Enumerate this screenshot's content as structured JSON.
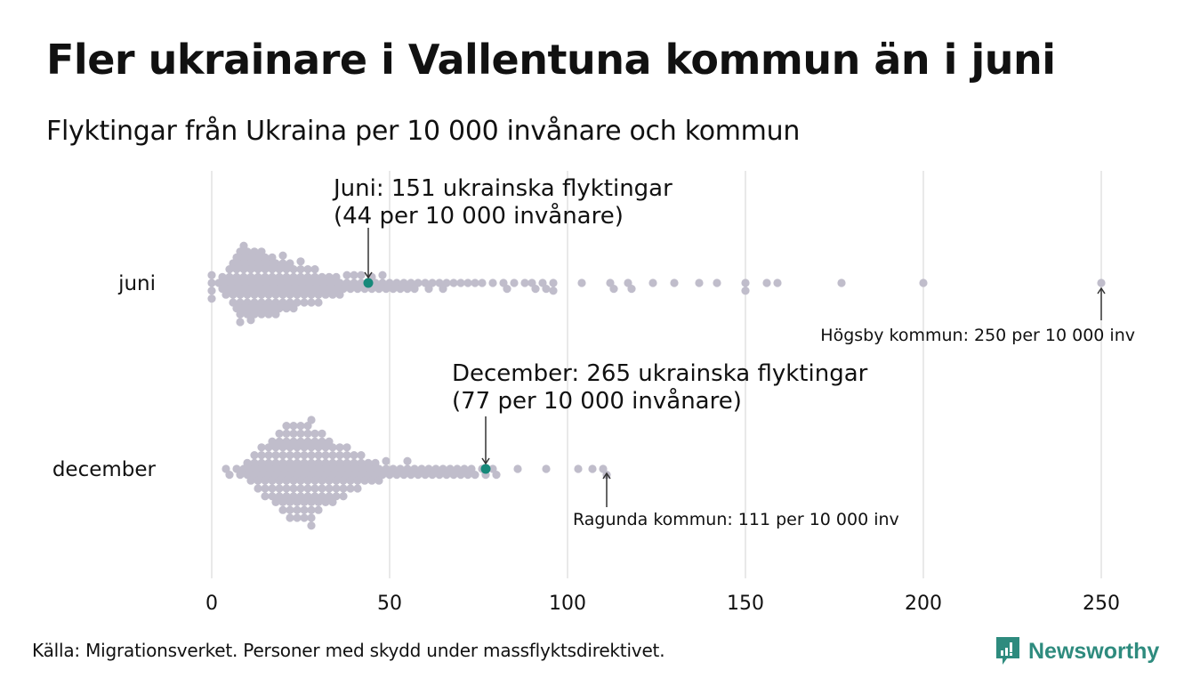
{
  "header": {
    "title": "Fler ukrainare i Vallentuna kommun än i juni",
    "subtitle": "Flyktingar från Ukraina per 10 000 invånare och kommun"
  },
  "footer": {
    "source": "Källa: Migrationsverket. Personer med skydd under massflyktsdirektivet.",
    "logo_text": "Newsworthy"
  },
  "colors": {
    "dot": "#c0bdcb",
    "highlight": "#17897a",
    "grid": "#d3d3d3",
    "brand": "#2e8b7e"
  },
  "chart_data": {
    "type": "scatter",
    "subtype": "beeswarm",
    "title": "Fler ukrainare i Vallentuna kommun än i juni",
    "subtitle": "Flyktingar från Ukraina per 10 000 invånare och kommun",
    "xlabel": "",
    "ylabel": "",
    "xlim": [
      0,
      250
    ],
    "xticks": [
      0,
      50,
      100,
      150,
      200,
      250
    ],
    "grid": true,
    "categories": [
      "juni",
      "december"
    ],
    "series": [
      {
        "name": "juni",
        "highlight": {
          "value": 44,
          "label_line1": "Juni: 151 ukrainska flyktingar",
          "label_line2": "(44 per 10 000 invånare)"
        },
        "max_annotation": {
          "value": 250,
          "label": "Högsby kommun: 250 per 10 000 inv"
        },
        "values": [
          0,
          0,
          0,
          0,
          2,
          3,
          3,
          4,
          4,
          5,
          5,
          5,
          6,
          6,
          6,
          6,
          7,
          7,
          7,
          7,
          7,
          8,
          8,
          8,
          8,
          8,
          8,
          8,
          9,
          9,
          9,
          9,
          9,
          9,
          10,
          10,
          10,
          10,
          10,
          10,
          11,
          11,
          11,
          11,
          11,
          11,
          12,
          12,
          12,
          12,
          12,
          12,
          13,
          13,
          13,
          13,
          13,
          14,
          14,
          14,
          14,
          14,
          14,
          15,
          15,
          15,
          15,
          15,
          16,
          16,
          16,
          16,
          16,
          17,
          17,
          17,
          17,
          17,
          18,
          18,
          18,
          18,
          18,
          19,
          19,
          19,
          19,
          20,
          20,
          20,
          20,
          20,
          21,
          21,
          21,
          21,
          22,
          22,
          22,
          22,
          23,
          23,
          23,
          23,
          24,
          24,
          24,
          25,
          25,
          25,
          25,
          26,
          26,
          26,
          27,
          27,
          27,
          28,
          28,
          28,
          29,
          29,
          29,
          30,
          30,
          30,
          31,
          31,
          32,
          32,
          33,
          33,
          34,
          34,
          35,
          35,
          36,
          36,
          37,
          38,
          38,
          39,
          40,
          40,
          41,
          42,
          42,
          43,
          44,
          45,
          45,
          46,
          47,
          48,
          48,
          49,
          50,
          51,
          52,
          53,
          54,
          55,
          56,
          57,
          58,
          60,
          61,
          62,
          64,
          65,
          66,
          68,
          70,
          72,
          74,
          76,
          79,
          82,
          83,
          85,
          88,
          90,
          91,
          93,
          94,
          96,
          96,
          104,
          112,
          113,
          117,
          118,
          124,
          130,
          137,
          142,
          150,
          150,
          156,
          159,
          177,
          200,
          250
        ]
      },
      {
        "name": "december",
        "highlight": {
          "value": 77,
          "label_line1": "December: 265 ukrainska flyktingar",
          "label_line2": "(77 per 10 000 invånare)"
        },
        "max_annotation": {
          "value": 111,
          "label": "Ragunda kommun: 111 per 10 000 inv"
        },
        "values": [
          4,
          5,
          7,
          8,
          9,
          10,
          10,
          11,
          11,
          12,
          12,
          12,
          13,
          13,
          13,
          14,
          14,
          14,
          14,
          15,
          15,
          15,
          15,
          16,
          16,
          16,
          16,
          17,
          17,
          17,
          17,
          17,
          18,
          18,
          18,
          18,
          18,
          19,
          19,
          19,
          19,
          19,
          19,
          20,
          20,
          20,
          20,
          20,
          20,
          21,
          21,
          21,
          21,
          21,
          21,
          21,
          22,
          22,
          22,
          22,
          22,
          22,
          22,
          23,
          23,
          23,
          23,
          23,
          23,
          23,
          24,
          24,
          24,
          24,
          24,
          24,
          24,
          25,
          25,
          25,
          25,
          25,
          25,
          25,
          26,
          26,
          26,
          26,
          26,
          26,
          26,
          27,
          27,
          27,
          27,
          27,
          27,
          27,
          28,
          28,
          28,
          28,
          28,
          28,
          28,
          28,
          28,
          29,
          29,
          29,
          29,
          29,
          29,
          30,
          30,
          30,
          30,
          30,
          30,
          31,
          31,
          31,
          31,
          31,
          31,
          32,
          32,
          32,
          32,
          32,
          33,
          33,
          33,
          33,
          33,
          34,
          34,
          34,
          34,
          34,
          35,
          35,
          35,
          35,
          36,
          36,
          36,
          36,
          37,
          37,
          37,
          37,
          38,
          38,
          38,
          38,
          39,
          39,
          39,
          40,
          40,
          40,
          41,
          41,
          41,
          42,
          42,
          42,
          43,
          43,
          44,
          44,
          45,
          45,
          46,
          46,
          47,
          47,
          48,
          49,
          49,
          50,
          51,
          52,
          53,
          54,
          55,
          55,
          56,
          57,
          58,
          59,
          60,
          61,
          62,
          63,
          64,
          65,
          66,
          67,
          68,
          69,
          70,
          71,
          72,
          73,
          74,
          76,
          77,
          79,
          80,
          86,
          94,
          103,
          107,
          110,
          111
        ]
      }
    ]
  }
}
